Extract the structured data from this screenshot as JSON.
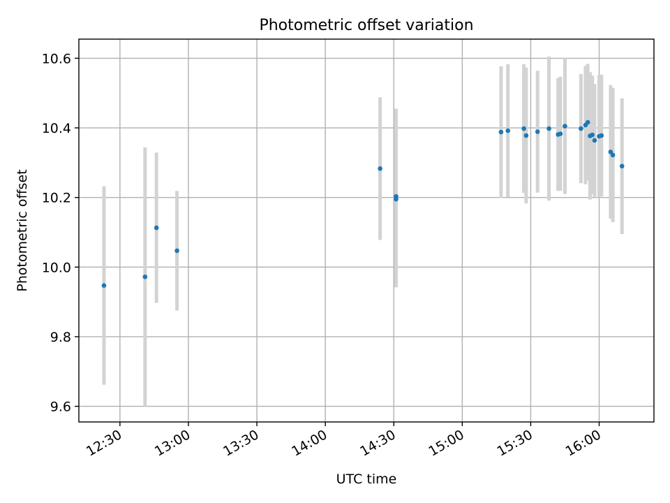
{
  "chart_data": {
    "type": "scatter",
    "title": "Photometric offset variation",
    "xlabel": "UTC time",
    "ylabel": "Photometric offset",
    "xlim": [
      "12:12",
      "16:24"
    ],
    "ylim": [
      9.555,
      10.655
    ],
    "xticks": [
      "12:30",
      "13:00",
      "13:30",
      "14:00",
      "14:30",
      "15:00",
      "15:30",
      "16:00"
    ],
    "yticks": [
      "9.6",
      "9.8",
      "10.0",
      "10.2",
      "10.4",
      "10.6"
    ],
    "grid": true,
    "colors": {
      "points": "#1f77b4",
      "error_bars": "#d3d3d3"
    },
    "series": [
      {
        "points": [
          {
            "x": "12:23",
            "y": 9.947,
            "err": 0.285
          },
          {
            "x": "12:41",
            "y": 9.972,
            "err": 0.372
          },
          {
            "x": "12:46",
            "y": 10.113,
            "err": 0.216
          },
          {
            "x": "12:55",
            "y": 10.047,
            "err": 0.172
          },
          {
            "x": "14:24",
            "y": 10.283,
            "err": 0.205
          },
          {
            "x": "14:31",
            "y": 10.203,
            "err": 0.252
          },
          {
            "x": "14:31",
            "y": 10.195,
            "err": 0.253
          },
          {
            "x": "15:17",
            "y": 10.388,
            "err": 0.189
          },
          {
            "x": "15:20",
            "y": 10.392,
            "err": 0.191
          },
          {
            "x": "15:27",
            "y": 10.398,
            "err": 0.185
          },
          {
            "x": "15:28",
            "y": 10.378,
            "err": 0.195
          },
          {
            "x": "15:33",
            "y": 10.389,
            "err": 0.175
          },
          {
            "x": "15:38",
            "y": 10.398,
            "err": 0.207
          },
          {
            "x": "15:42",
            "y": 10.381,
            "err": 0.162
          },
          {
            "x": "15:43",
            "y": 10.383,
            "err": 0.164
          },
          {
            "x": "15:45",
            "y": 10.405,
            "err": 0.195
          },
          {
            "x": "15:52",
            "y": 10.398,
            "err": 0.157
          },
          {
            "x": "15:54",
            "y": 10.408,
            "err": 0.17
          },
          {
            "x": "15:55",
            "y": 10.416,
            "err": 0.168
          },
          {
            "x": "15:56",
            "y": 10.377,
            "err": 0.183
          },
          {
            "x": "15:57",
            "y": 10.38,
            "err": 0.17
          },
          {
            "x": "15:58",
            "y": 10.364,
            "err": 0.162
          },
          {
            "x": "16:00",
            "y": 10.376,
            "err": 0.176
          },
          {
            "x": "16:01",
            "y": 10.378,
            "err": 0.175
          },
          {
            "x": "16:05",
            "y": 10.331,
            "err": 0.192
          },
          {
            "x": "16:06",
            "y": 10.322,
            "err": 0.193
          },
          {
            "x": "16:10",
            "y": 10.29,
            "err": 0.195
          }
        ]
      }
    ]
  }
}
